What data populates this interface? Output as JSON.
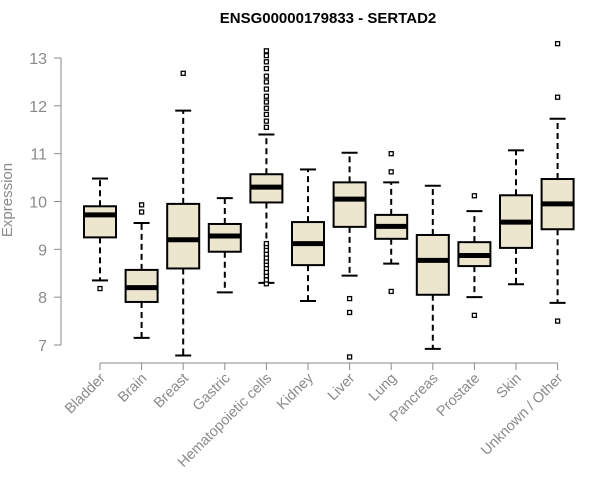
{
  "chart_data": {
    "type": "box",
    "title": "ENSG00000179833 - SERTAD2",
    "ylabel": "Expression",
    "xlabel": "",
    "ylim": [
      6.7,
      13.3
    ],
    "yticks": [
      7,
      8,
      9,
      10,
      11,
      12,
      13
    ],
    "box_fill": "#ede6cf",
    "categories": [
      "Bladder",
      "Brain",
      "Breast",
      "Gastric",
      "Hematopoietic cells",
      "Kidney",
      "Liver",
      "Lung",
      "Pancreas",
      "Prostate",
      "Skin",
      "Unknown / Other"
    ],
    "boxes": [
      {
        "whisker_low": 8.35,
        "q1": 9.25,
        "median": 9.72,
        "q3": 9.9,
        "whisker_high": 10.48,
        "outliers": [
          8.18
        ]
      },
      {
        "whisker_low": 7.15,
        "q1": 7.9,
        "median": 8.2,
        "q3": 8.57,
        "whisker_high": 9.55,
        "outliers": [
          9.78,
          9.93
        ]
      },
      {
        "whisker_low": 6.78,
        "q1": 8.6,
        "median": 9.2,
        "q3": 9.95,
        "whisker_high": 11.9,
        "outliers": [
          12.68
        ]
      },
      {
        "whisker_low": 8.1,
        "q1": 8.95,
        "median": 9.28,
        "q3": 9.53,
        "whisker_high": 10.07,
        "outliers": []
      },
      {
        "whisker_low": 8.3,
        "q1": 9.98,
        "median": 10.3,
        "q3": 10.57,
        "whisker_high": 11.4,
        "outliers": [
          8.28,
          8.36,
          8.45,
          8.52,
          8.6,
          8.68,
          8.75,
          8.82,
          8.9,
          8.98,
          9.06,
          9.12,
          11.55,
          11.68,
          11.82,
          11.95,
          12.08,
          12.2,
          12.35,
          12.5,
          12.62,
          12.78,
          12.92,
          13.05,
          13.15
        ]
      },
      {
        "whisker_low": 7.92,
        "q1": 8.67,
        "median": 9.12,
        "q3": 9.57,
        "whisker_high": 10.67,
        "outliers": []
      },
      {
        "whisker_low": 8.45,
        "q1": 9.47,
        "median": 10.05,
        "q3": 10.4,
        "whisker_high": 11.02,
        "outliers": [
          7.68,
          7.97,
          6.75
        ]
      },
      {
        "whisker_low": 8.7,
        "q1": 9.22,
        "median": 9.48,
        "q3": 9.72,
        "whisker_high": 10.4,
        "outliers": [
          8.12,
          10.62,
          11.0
        ]
      },
      {
        "whisker_low": 6.92,
        "q1": 8.05,
        "median": 8.77,
        "q3": 9.3,
        "whisker_high": 10.33,
        "outliers": []
      },
      {
        "whisker_low": 8.0,
        "q1": 8.65,
        "median": 8.87,
        "q3": 9.15,
        "whisker_high": 9.8,
        "outliers": [
          7.62,
          10.12
        ]
      },
      {
        "whisker_low": 8.27,
        "q1": 9.03,
        "median": 9.57,
        "q3": 10.13,
        "whisker_high": 11.07,
        "outliers": []
      },
      {
        "whisker_low": 7.88,
        "q1": 9.42,
        "median": 9.95,
        "q3": 10.47,
        "whisker_high": 11.73,
        "outliers": [
          7.5,
          12.18,
          13.3
        ]
      }
    ]
  }
}
